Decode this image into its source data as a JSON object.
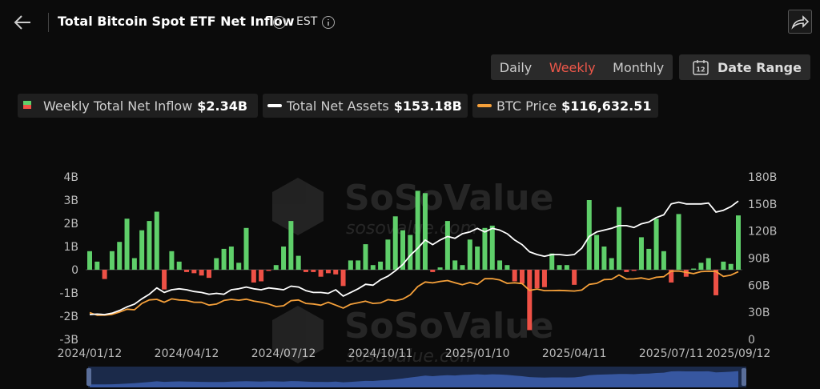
{
  "header": {
    "title": "Total Bitcoin Spot ETF Net Inflow",
    "timezone": "EST"
  },
  "controls": {
    "periods": [
      "Daily",
      "Weekly",
      "Monthly"
    ],
    "active_period": 1,
    "active_color": "#f0584a",
    "calendar_icon_text": "12",
    "date_range": "Date Range"
  },
  "chart_data": {
    "type": "bar",
    "watermark": {
      "brand": "SoSoValue",
      "site": "sosovalue.com"
    },
    "categories": [
      "2024/01/12",
      null,
      null,
      null,
      null,
      null,
      null,
      null,
      null,
      null,
      null,
      null,
      null,
      "2024/04/12",
      null,
      null,
      null,
      null,
      null,
      null,
      null,
      null,
      null,
      null,
      null,
      null,
      "2024/07/12",
      null,
      null,
      null,
      null,
      null,
      null,
      null,
      null,
      null,
      null,
      null,
      null,
      "2024/10/11",
      null,
      null,
      null,
      null,
      null,
      null,
      null,
      null,
      null,
      null,
      null,
      null,
      "2025/01/10",
      null,
      null,
      null,
      null,
      null,
      null,
      null,
      null,
      null,
      null,
      null,
      null,
      "2025/04/11",
      null,
      null,
      null,
      null,
      null,
      null,
      null,
      null,
      null,
      null,
      null,
      null,
      "2025/07/11",
      null,
      null,
      null,
      null,
      null,
      null,
      null,
      null,
      "2025/09/12"
    ],
    "series": [
      {
        "name": "Weekly Total Net Inflow",
        "legend_value": "$2.34B",
        "type": "bar",
        "axis": "y",
        "color": "#5fcf6a",
        "negative_color": "#ee5146",
        "values": [
          0.8,
          0.35,
          -0.4,
          0.8,
          1.2,
          2.2,
          0.5,
          1.7,
          2.1,
          2.5,
          -0.85,
          0.8,
          0.35,
          -0.1,
          -0.15,
          -0.25,
          -0.35,
          0.5,
          0.9,
          1.0,
          0.3,
          1.8,
          -0.55,
          -0.5,
          -0.05,
          0.2,
          1.0,
          2.1,
          0.6,
          -0.1,
          -0.1,
          -0.3,
          -0.15,
          -0.2,
          -0.7,
          0.4,
          0.4,
          1.1,
          0.2,
          0.35,
          1.3,
          2.3,
          1.7,
          1.5,
          3.4,
          3.3,
          -0.1,
          0.1,
          2.1,
          0.4,
          0.2,
          1.3,
          1.0,
          1.8,
          1.9,
          0.4,
          0.2,
          -0.5,
          -0.6,
          -2.6,
          -0.8,
          -0.75,
          0.7,
          0.2,
          0.2,
          -0.65,
          0.0,
          3.0,
          1.5,
          1.0,
          0.5,
          2.7,
          -0.1,
          -0.05,
          1.4,
          0.9,
          2.2,
          0.8,
          -0.55,
          2.4,
          -0.3,
          0.05,
          0.3,
          0.5,
          -1.1,
          0.35,
          0.25,
          2.34
        ]
      },
      {
        "name": "Total Net Assets",
        "legend_value": "$153.18B",
        "type": "line",
        "axis": "y2",
        "color": "#ffffff",
        "values": [
          27.5,
          28,
          27.5,
          29,
          32,
          36,
          39,
          45,
          50,
          57,
          52,
          55,
          56,
          55,
          53,
          52,
          50,
          51,
          50,
          55,
          56,
          58,
          56,
          55,
          57,
          56,
          55,
          59,
          58,
          54,
          52,
          52,
          51,
          55,
          48,
          52,
          56,
          61,
          60,
          66,
          70,
          76,
          83,
          93,
          101,
          110,
          105,
          110,
          114,
          112,
          117,
          119,
          123,
          119,
          123,
          121,
          117,
          110,
          105,
          97,
          94,
          92,
          94,
          94,
          93,
          94,
          101,
          114,
          119,
          121,
          123,
          126,
          126,
          124,
          128,
          130,
          135,
          138,
          150,
          152,
          150,
          150,
          150,
          151,
          141,
          143,
          147,
          153.18
        ]
      },
      {
        "name": "BTC Price",
        "legend_value": "$116,632.51",
        "type": "line",
        "axis": "y3",
        "color": "#f5a03a",
        "values": [
          46000,
          41700,
          41800,
          43000,
          47000,
          52000,
          51000,
          62000,
          68000,
          69000,
          64000,
          69800,
          67800,
          67100,
          64000,
          63800,
          59000,
          60800,
          67000,
          69000,
          67500,
          69300,
          66000,
          64000,
          61000,
          56600,
          57900,
          66700,
          67900,
          62000,
          60900,
          58900,
          64000,
          59000,
          53900,
          60500,
          63000,
          65800,
          62000,
          62900,
          68400,
          66600,
          69500,
          76700,
          91000,
          98900,
          97400,
          99800,
          101400,
          97700,
          94200,
          98100,
          94700,
          104500,
          104700,
          102400,
          96500,
          97500,
          96200,
          84300,
          86700,
          84000,
          84200,
          84400,
          83800,
          83300,
          84900,
          94700,
          96500,
          103000,
          103500,
          111000,
          104000,
          104300,
          105900,
          103300,
          107100,
          108000,
          117500,
          117800,
          115500,
          113300,
          116700,
          117400,
          116900,
          108400,
          110700,
          116632.51
        ]
      }
    ],
    "ylim": [
      -3,
      4
    ],
    "yticks": [
      {
        "value": -3,
        "label": "-3B"
      },
      {
        "value": -2,
        "label": "-2B"
      },
      {
        "value": -1,
        "label": "-1B"
      },
      {
        "value": 0,
        "label": "0"
      },
      {
        "value": 1,
        "label": "1B"
      },
      {
        "value": 2,
        "label": "2B"
      },
      {
        "value": 3,
        "label": "3B"
      },
      {
        "value": 4,
        "label": "4B"
      }
    ],
    "y2lim": [
      0,
      180
    ],
    "y2ticks": [
      0,
      {
        "value": 30,
        "label": "30B"
      },
      {
        "value": 60,
        "label": "60B"
      },
      {
        "value": 90,
        "label": "90B"
      },
      {
        "value": 120,
        "label": "120B"
      },
      {
        "value": 150,
        "label": "150B"
      },
      {
        "value": 180,
        "label": "180B"
      }
    ],
    "y3lim": [
      0,
      280000
    ]
  }
}
